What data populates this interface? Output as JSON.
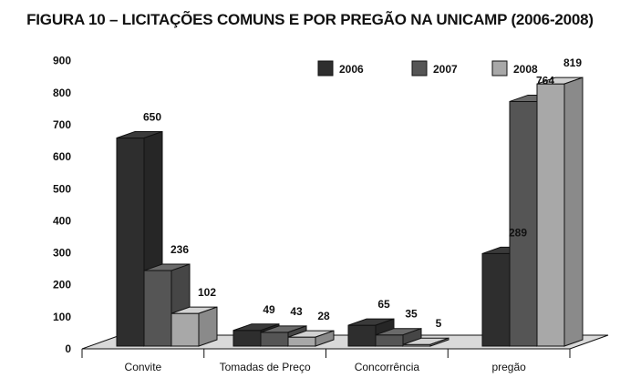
{
  "title": "FIGURA 10 – LICITAÇÕES COMUNS E POR PREGÃO NA UNICAMP (2006-2008)",
  "chart_data": {
    "type": "bar",
    "title": "FIGURA 10 – LICITAÇÕES COMUNS E POR PREGÃO NA UNICAMP (2006-2008)",
    "categories": [
      "Convite",
      "Tomadas de Preço",
      "Concorrência",
      "pregão"
    ],
    "series": [
      {
        "name": "2006",
        "values": [
          650,
          49,
          65,
          289
        ],
        "color": "#2e2e2e"
      },
      {
        "name": "2007",
        "values": [
          236,
          43,
          35,
          764
        ],
        "color": "#555555"
      },
      {
        "name": "2008",
        "values": [
          102,
          28,
          5,
          819
        ],
        "color": "#a8a8a8"
      }
    ],
    "ylim": [
      0,
      900
    ],
    "yticks": [
      0,
      100,
      200,
      300,
      400,
      500,
      600,
      700,
      800,
      900
    ],
    "xlabel": "",
    "ylabel": "",
    "grid": false,
    "three_d": true,
    "legend_position": "top-right"
  }
}
